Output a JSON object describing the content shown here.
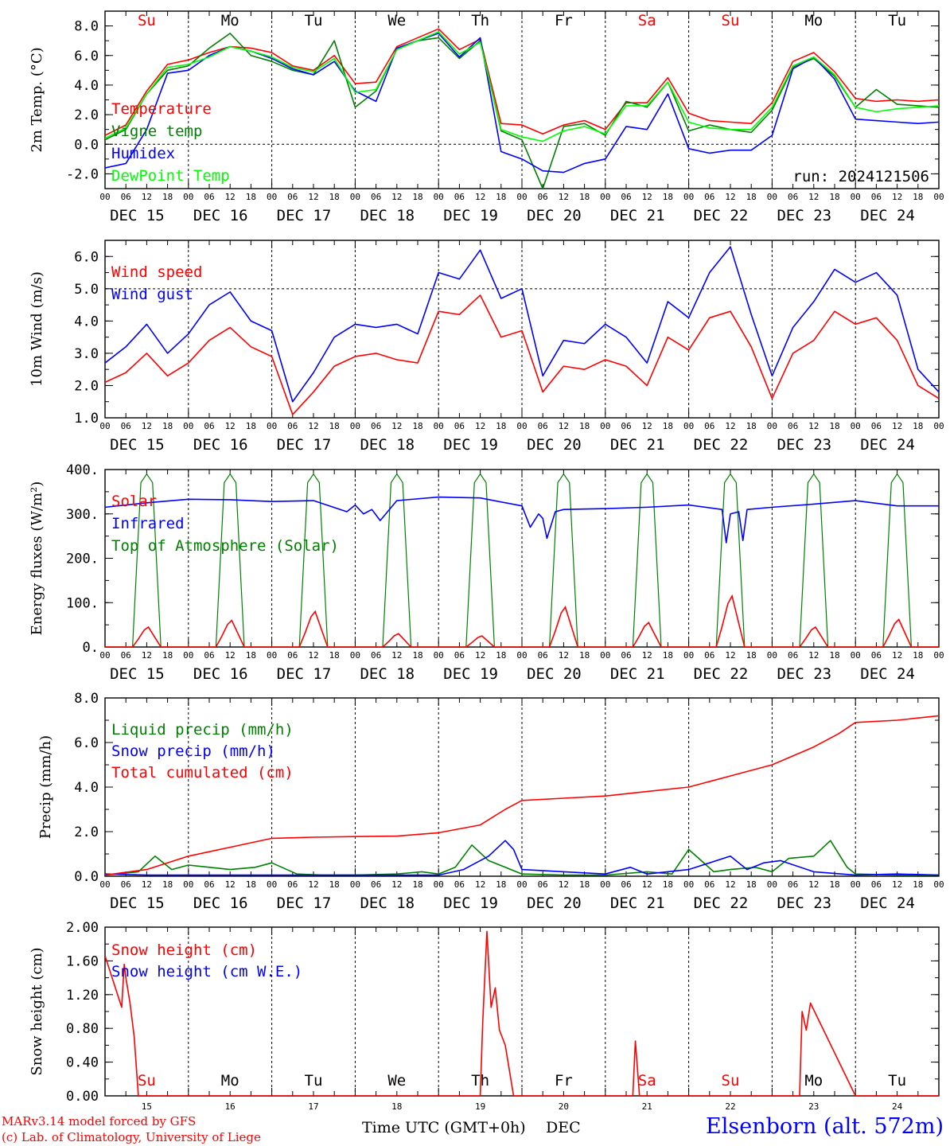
{
  "run_label": "run: 2024121506",
  "footer": {
    "model": "MARv3.14 model forced by GFS",
    "credit": "(c) Lab. of Climatology, University of Liege",
    "xlabel": "Time UTC (GMT+0h)",
    "xunit": "DEC",
    "station": "Elsenborn (alt. 572m)"
  },
  "x_axis": {
    "hour_ticks": [
      "00",
      "06",
      "12",
      "18"
    ],
    "final_tick": "00",
    "dates": [
      "DEC 15",
      "DEC 16",
      "DEC 17",
      "DEC 18",
      "DEC 19",
      "DEC 20",
      "DEC 21",
      "DEC 22",
      "DEC 23",
      "DEC 24"
    ],
    "weekdays": [
      "Su",
      "Mo",
      "Tu",
      "We",
      "Th",
      "Fr",
      "Sa",
      "Su",
      "Mo",
      "Tu"
    ],
    "weekday_colors": [
      "#ff0000",
      "#000000",
      "#000000",
      "#000000",
      "#000000",
      "#000000",
      "#ff0000",
      "#ff0000",
      "#000000",
      "#000000"
    ],
    "day_numbers": [
      "15",
      "16",
      "17",
      "18",
      "19",
      "20",
      "21",
      "22",
      "23",
      "24"
    ]
  },
  "chart_data": [
    {
      "type": "line",
      "ylabel": "2m Temp. (°C)",
      "ylim": [
        -3.0,
        9.0
      ],
      "yticks": [
        "8.0",
        "6.0",
        "4.0",
        "2.0",
        "0.0",
        "-2.0"
      ],
      "ytick_values": [
        8,
        6,
        4,
        2,
        0,
        -2
      ],
      "ref_line": 0,
      "x_days_start": 0,
      "series": [
        {
          "name": "Temperature",
          "color": "#ff0000",
          "x": [
            0,
            0.25,
            0.5,
            0.75,
            1,
            1.25,
            1.5,
            1.75,
            2,
            2.25,
            2.5,
            2.75,
            3,
            3.25,
            3.5,
            3.75,
            4,
            4.25,
            4.5,
            4.75,
            5,
            5.25,
            5.5,
            5.75,
            6,
            6.25,
            6.5,
            6.75,
            7,
            7.25,
            7.5,
            7.75,
            8,
            8.25,
            8.5,
            8.75,
            9,
            9.25,
            9.5,
            9.75,
            10
          ],
          "y": [
            0.6,
            1.3,
            3.6,
            5.4,
            5.7,
            6.2,
            6.6,
            6.5,
            6.2,
            5.3,
            5.0,
            6.0,
            4.1,
            4.2,
            6.6,
            7.2,
            7.8,
            6.4,
            7.1,
            1.4,
            1.3,
            0.7,
            1.3,
            1.6,
            1.0,
            2.8,
            2.8,
            4.5,
            2.1,
            1.6,
            1.5,
            1.4,
            2.8,
            5.6,
            6.2,
            4.9,
            3.1,
            2.9,
            3.0,
            2.9,
            3.0
          ]
        },
        {
          "name": "Vigne temp",
          "color": "#008000",
          "x": [
            0,
            0.25,
            0.5,
            0.75,
            1,
            1.25,
            1.5,
            1.75,
            2,
            2.25,
            2.5,
            2.75,
            3,
            3.25,
            3.5,
            3.75,
            4,
            4.25,
            4.5,
            4.75,
            5,
            5.25,
            5.5,
            5.75,
            6,
            6.25,
            6.5,
            6.75,
            7,
            7.25,
            7.5,
            7.75,
            8,
            8.25,
            8.5,
            8.75,
            9,
            9.25,
            9.5,
            9.75,
            10
          ],
          "y": [
            0.3,
            1.0,
            3.4,
            5.0,
            5.3,
            6.5,
            7.5,
            6.0,
            5.6,
            5.0,
            4.7,
            7.0,
            2.5,
            3.6,
            6.4,
            7.0,
            7.2,
            5.8,
            7.0,
            0.9,
            0.3,
            -3.0,
            1.2,
            1.4,
            0.6,
            2.9,
            2.5,
            4.2,
            0.9,
            1.3,
            1.0,
            0.8,
            2.3,
            5.2,
            5.8,
            4.6,
            2.5,
            3.7,
            2.7,
            2.6,
            2.5
          ]
        },
        {
          "name": "Humidex",
          "color": "#0000ff",
          "x": [
            0,
            0.25,
            0.5,
            0.75,
            1,
            1.25,
            1.5,
            1.75,
            2,
            2.25,
            2.5,
            2.75,
            3,
            3.25,
            3.5,
            3.75,
            4,
            4.25,
            4.5,
            4.75,
            5,
            5.25,
            5.5,
            5.75,
            6,
            6.25,
            6.5,
            6.75,
            7,
            7.25,
            7.5,
            7.75,
            8,
            8.25,
            8.5,
            8.75,
            9,
            9.25,
            9.5,
            9.75,
            10
          ],
          "y": [
            -1.6,
            -1.3,
            1.0,
            4.8,
            5.0,
            6.0,
            6.6,
            6.3,
            5.8,
            5.1,
            4.7,
            5.6,
            3.6,
            2.9,
            6.5,
            7.0,
            7.5,
            5.9,
            7.2,
            -0.5,
            -1.0,
            -1.8,
            -1.9,
            -1.3,
            -1.0,
            1.2,
            1.0,
            3.4,
            -0.3,
            -0.6,
            -0.4,
            -0.4,
            0.6,
            5.1,
            5.9,
            4.4,
            1.7,
            1.6,
            1.5,
            1.4,
            1.5
          ]
        },
        {
          "name": "DewPoint Temp",
          "color": "#00ff00",
          "x": [
            0,
            0.25,
            0.5,
            0.75,
            1,
            1.25,
            1.5,
            1.75,
            2,
            2.25,
            2.5,
            2.75,
            3,
            3.25,
            3.5,
            3.75,
            4,
            4.25,
            4.5,
            4.75,
            5,
            5.25,
            5.5,
            5.75,
            6,
            6.25,
            6.5,
            6.75,
            7,
            7.25,
            7.5,
            7.75,
            8,
            8.25,
            8.5,
            8.75,
            9,
            9.25,
            9.5,
            9.75,
            10
          ],
          "y": [
            0.4,
            1.1,
            3.4,
            5.2,
            5.4,
            5.9,
            6.6,
            6.3,
            5.9,
            5.2,
            4.9,
            5.8,
            3.5,
            3.7,
            6.4,
            7.0,
            7.6,
            6.1,
            6.9,
            1.0,
            0.5,
            0.2,
            0.9,
            1.2,
            0.7,
            2.6,
            2.6,
            4.2,
            1.5,
            1.1,
            1.0,
            1.0,
            2.5,
            5.3,
            5.9,
            4.7,
            2.5,
            2.2,
            2.4,
            2.5,
            2.6
          ]
        }
      ]
    },
    {
      "type": "line",
      "ylabel": "10m Wind (m/s)",
      "ylim": [
        1.0,
        6.5
      ],
      "yticks": [
        "6.0",
        "5.0",
        "4.0",
        "3.0",
        "2.0",
        "1.0"
      ],
      "ytick_values": [
        6,
        5,
        4,
        3,
        2,
        1
      ],
      "ref_line": 5,
      "series": [
        {
          "name": "Wind speed",
          "color": "#ff0000",
          "x": [
            0,
            0.25,
            0.5,
            0.75,
            1,
            1.25,
            1.5,
            1.75,
            2,
            2.25,
            2.5,
            2.75,
            3,
            3.25,
            3.5,
            3.75,
            4,
            4.25,
            4.5,
            4.75,
            5,
            5.25,
            5.5,
            5.75,
            6,
            6.25,
            6.5,
            6.75,
            7,
            7.25,
            7.5,
            7.75,
            8,
            8.25,
            8.5,
            8.75,
            9,
            9.25,
            9.5,
            9.75,
            10
          ],
          "y": [
            2.1,
            2.4,
            3.0,
            2.3,
            2.7,
            3.4,
            3.8,
            3.2,
            2.9,
            1.1,
            1.8,
            2.6,
            2.9,
            3.0,
            2.8,
            2.7,
            4.3,
            4.2,
            4.8,
            3.5,
            3.7,
            1.8,
            2.6,
            2.5,
            2.8,
            2.6,
            2.0,
            3.5,
            3.1,
            4.1,
            4.3,
            3.2,
            1.6,
            3.0,
            3.4,
            4.3,
            3.9,
            4.1,
            3.4,
            2.0,
            1.6
          ]
        },
        {
          "name": "Wind gust",
          "color": "#0000ff",
          "x": [
            0,
            0.25,
            0.5,
            0.75,
            1,
            1.25,
            1.5,
            1.75,
            2,
            2.25,
            2.5,
            2.75,
            3,
            3.25,
            3.5,
            3.75,
            4,
            4.25,
            4.5,
            4.75,
            5,
            5.25,
            5.5,
            5.75,
            6,
            6.25,
            6.5,
            6.75,
            7,
            7.25,
            7.5,
            7.75,
            8,
            8.25,
            8.5,
            8.75,
            9,
            9.25,
            9.5,
            9.75,
            10
          ],
          "y": [
            2.7,
            3.2,
            3.9,
            3.0,
            3.6,
            4.5,
            4.9,
            4.0,
            3.7,
            1.5,
            2.4,
            3.5,
            3.9,
            3.8,
            3.9,
            3.6,
            5.5,
            5.3,
            6.2,
            4.7,
            5.0,
            2.3,
            3.4,
            3.3,
            3.9,
            3.5,
            2.7,
            4.6,
            4.1,
            5.5,
            6.3,
            4.2,
            2.3,
            3.8,
            4.6,
            5.6,
            5.2,
            5.5,
            4.8,
            2.5,
            1.8
          ]
        }
      ]
    },
    {
      "type": "line",
      "ylabel": "Energy fluxes (W/m²)",
      "ylim": [
        0,
        400
      ],
      "yticks": [
        "400.",
        "300.",
        "200.",
        "100.",
        "0."
      ],
      "ytick_values": [
        400,
        300,
        200,
        100,
        0
      ],
      "series": [
        {
          "name": "Solar",
          "color": "#ff0000"
        },
        {
          "name": "Infrared",
          "color": "#0000ff",
          "x": [
            0,
            0.5,
            1,
            1.5,
            2,
            2.5,
            2.9,
            3.0,
            3.1,
            3.2,
            3.3,
            3.5,
            4,
            4.5,
            5,
            5.1,
            5.2,
            5.25,
            5.3,
            5.4,
            5.5,
            6,
            6.5,
            7,
            7.4,
            7.45,
            7.5,
            7.6,
            7.65,
            7.7,
            8,
            8.5,
            9,
            9.5,
            10
          ],
          "y": [
            315,
            325,
            333,
            332,
            328,
            330,
            305,
            320,
            300,
            310,
            285,
            330,
            338,
            336,
            318,
            270,
            300,
            290,
            245,
            305,
            310,
            312,
            315,
            320,
            310,
            235,
            300,
            305,
            240,
            310,
            315,
            322,
            330,
            318,
            318
          ]
        },
        {
          "name": "Top of Atmosphere (Solar)",
          "color": "#008000"
        }
      ],
      "daily_toa_peak": 390,
      "daily_solar_peak": [
        45,
        60,
        80,
        30,
        25,
        90,
        55,
        115,
        45,
        62
      ]
    },
    {
      "type": "line",
      "ylabel": "Precip (mm/h)",
      "ylim": [
        0,
        8.0
      ],
      "yticks": [
        "8.0",
        "6.0",
        "4.0",
        "2.0",
        "0.0"
      ],
      "ytick_values": [
        8,
        6,
        4,
        2,
        0
      ],
      "series": [
        {
          "name": "Liquid precip (mm/h)",
          "color": "#008000",
          "x": [
            0,
            0.4,
            0.6,
            0.8,
            1.0,
            1.5,
            1.8,
            2.0,
            2.3,
            2.6,
            3.0,
            3.5,
            3.8,
            4.0,
            4.2,
            4.4,
            4.6,
            4.8,
            5.0,
            5.5,
            6.0,
            6.5,
            6.8,
            7.0,
            7.3,
            7.5,
            7.8,
            8.0,
            8.2,
            8.5,
            8.7,
            8.9,
            9.0,
            9.5,
            10
          ],
          "y": [
            0.05,
            0.2,
            0.9,
            0.3,
            0.5,
            0.3,
            0.4,
            0.6,
            0.1,
            0.05,
            0.05,
            0.1,
            0.2,
            0.1,
            0.4,
            1.4,
            0.7,
            0.4,
            0.1,
            0.05,
            0.05,
            0.2,
            0.1,
            1.2,
            0.2,
            0.3,
            0.4,
            0.2,
            0.8,
            0.9,
            1.6,
            0.4,
            0.1,
            0.05,
            0.05
          ]
        },
        {
          "name": "Snow precip (mm/h)",
          "color": "#0000ff",
          "x": [
            0,
            0.5,
            1,
            1.5,
            2,
            2.5,
            3,
            3.5,
            4,
            4.3,
            4.6,
            4.8,
            4.9,
            5.0,
            5.5,
            6.0,
            6.3,
            6.5,
            7,
            7.5,
            7.7,
            7.9,
            8.1,
            8.5,
            9,
            9.5,
            10
          ],
          "y": [
            0.1,
            0.05,
            0.05,
            0.05,
            0.05,
            0.05,
            0.05,
            0.05,
            0.05,
            0.3,
            0.9,
            1.6,
            1.2,
            0.3,
            0.2,
            0.1,
            0.4,
            0.1,
            0.3,
            0.9,
            0.3,
            0.6,
            0.7,
            0.2,
            0.05,
            0.1,
            0.05
          ]
        },
        {
          "name": "Total cumulated (cm)",
          "color": "#ff0000",
          "x": [
            0,
            0.5,
            1,
            1.5,
            2,
            2.5,
            3,
            3.5,
            4,
            4.5,
            4.8,
            5,
            5.5,
            6,
            6.5,
            7,
            7.5,
            8,
            8.5,
            8.8,
            9,
            9.5,
            10
          ],
          "y": [
            0.05,
            0.3,
            0.9,
            1.3,
            1.7,
            1.75,
            1.78,
            1.8,
            1.95,
            2.3,
            3.0,
            3.4,
            3.5,
            3.6,
            3.8,
            4.0,
            4.5,
            5.0,
            5.8,
            6.4,
            6.9,
            7.0,
            7.2
          ]
        }
      ]
    },
    {
      "type": "line",
      "ylabel": "Snow height (cm)",
      "ylim": [
        0,
        2.0
      ],
      "yticks": [
        "2.00",
        "1.60",
        "1.20",
        "0.80",
        "0.40",
        "0.00"
      ],
      "ytick_values": [
        2.0,
        1.6,
        1.2,
        0.8,
        0.4,
        0.0
      ],
      "series": [
        {
          "name": "Snow height (cm)",
          "color": "#ff0000",
          "x": [
            0,
            0.2,
            0.23,
            0.25,
            0.3,
            0.35,
            0.4,
            0.5,
            0.5,
            4.5,
            4.53,
            4.58,
            4.63,
            4.68,
            4.73,
            4.8,
            4.9,
            5.0,
            5.1,
            6.33,
            6.36,
            6.41,
            6.46,
            8.33,
            8.36,
            8.41,
            8.46,
            9.0,
            10
          ],
          "y": [
            1.66,
            1.05,
            1.56,
            1.4,
            1.1,
            0.7,
            0.0,
            0.0,
            0.0,
            0.0,
            0.88,
            1.95,
            1.05,
            1.28,
            0.78,
            0.6,
            0.0,
            0.0,
            0.0,
            0.0,
            0.65,
            0.0,
            0.0,
            0.0,
            1.0,
            0.78,
            1.1,
            0.0,
            0.0
          ]
        },
        {
          "name": "Snow height (cm W.E.)",
          "color": "#0000ff"
        }
      ]
    }
  ]
}
